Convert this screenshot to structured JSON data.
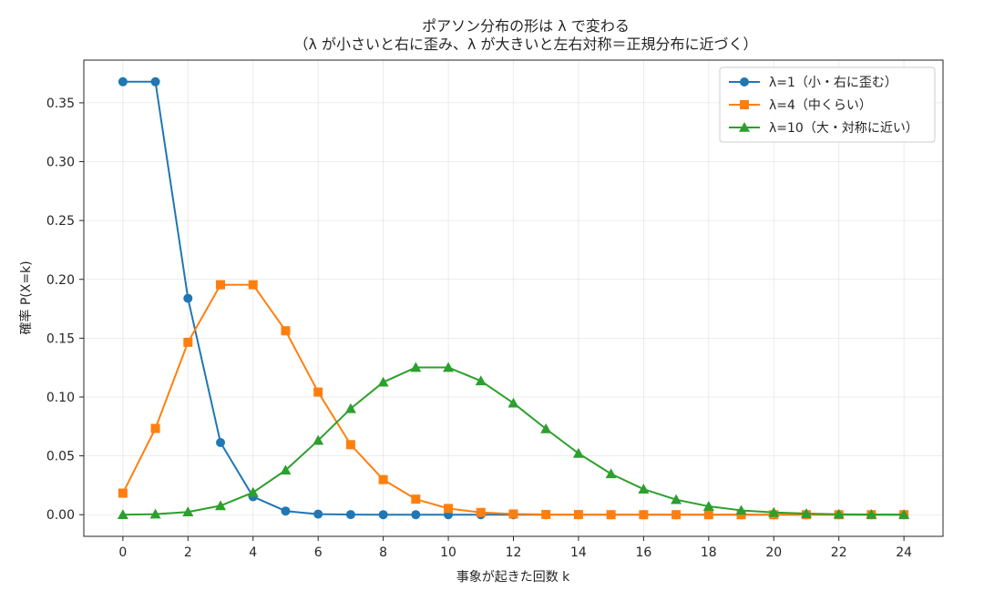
{
  "chart_data": {
    "type": "line",
    "title": "ポアソン分布の形は λ で変わる",
    "subtitle": "（λ が小さいと右に歪み、λ が大きいと左右対称＝正規分布に近づく）",
    "xlabel": "事象が起きた回数 k",
    "ylabel": "確率 P(X=k)",
    "xlim": [
      -1.2,
      25.2
    ],
    "ylim": [
      -0.0184,
      0.3863
    ],
    "xticks": [
      0,
      2,
      4,
      6,
      8,
      10,
      12,
      14,
      16,
      18,
      20,
      22,
      24
    ],
    "yticks": [
      0.0,
      0.05,
      0.1,
      0.15,
      0.2,
      0.25,
      0.3,
      0.35
    ],
    "ytick_labels": [
      "0.00",
      "0.05",
      "0.10",
      "0.15",
      "0.20",
      "0.25",
      "0.30",
      "0.35"
    ],
    "grid": true,
    "legend_position": "top-right",
    "x": [
      0,
      1,
      2,
      3,
      4,
      5,
      6,
      7,
      8,
      9,
      10,
      11,
      12,
      13,
      14,
      15,
      16,
      17,
      18,
      19,
      20,
      21,
      22,
      23,
      24
    ],
    "series": [
      {
        "name": "λ=1（小・右に歪む）",
        "color": "#1f77b4",
        "marker": "circle",
        "values": [
          0.3679,
          0.3679,
          0.1839,
          0.0613,
          0.0153,
          0.0031,
          0.0005,
          0.0001,
          0.0,
          0.0,
          0.0,
          0.0,
          0.0,
          0.0,
          0.0,
          0.0,
          0.0,
          0.0,
          0.0,
          0.0,
          0.0,
          0.0,
          0.0,
          0.0,
          0.0
        ]
      },
      {
        "name": "λ=4（中くらい）",
        "color": "#ff7f0e",
        "marker": "square",
        "values": [
          0.0183,
          0.0733,
          0.1465,
          0.1954,
          0.1954,
          0.1563,
          0.1042,
          0.0595,
          0.0298,
          0.0132,
          0.0053,
          0.0019,
          0.0006,
          0.0002,
          0.0001,
          0.0,
          0.0,
          0.0,
          0.0,
          0.0,
          0.0,
          0.0,
          0.0,
          0.0,
          0.0
        ]
      },
      {
        "name": "λ=10（大・対称に近い）",
        "color": "#2ca02c",
        "marker": "triangle",
        "values": [
          0.0,
          0.0005,
          0.0023,
          0.0076,
          0.0189,
          0.0378,
          0.0631,
          0.0901,
          0.1126,
          0.1251,
          0.1251,
          0.1137,
          0.0948,
          0.0729,
          0.0521,
          0.0347,
          0.0217,
          0.0128,
          0.0071,
          0.0037,
          0.0019,
          0.0009,
          0.0004,
          0.0002,
          0.0001
        ]
      }
    ]
  }
}
